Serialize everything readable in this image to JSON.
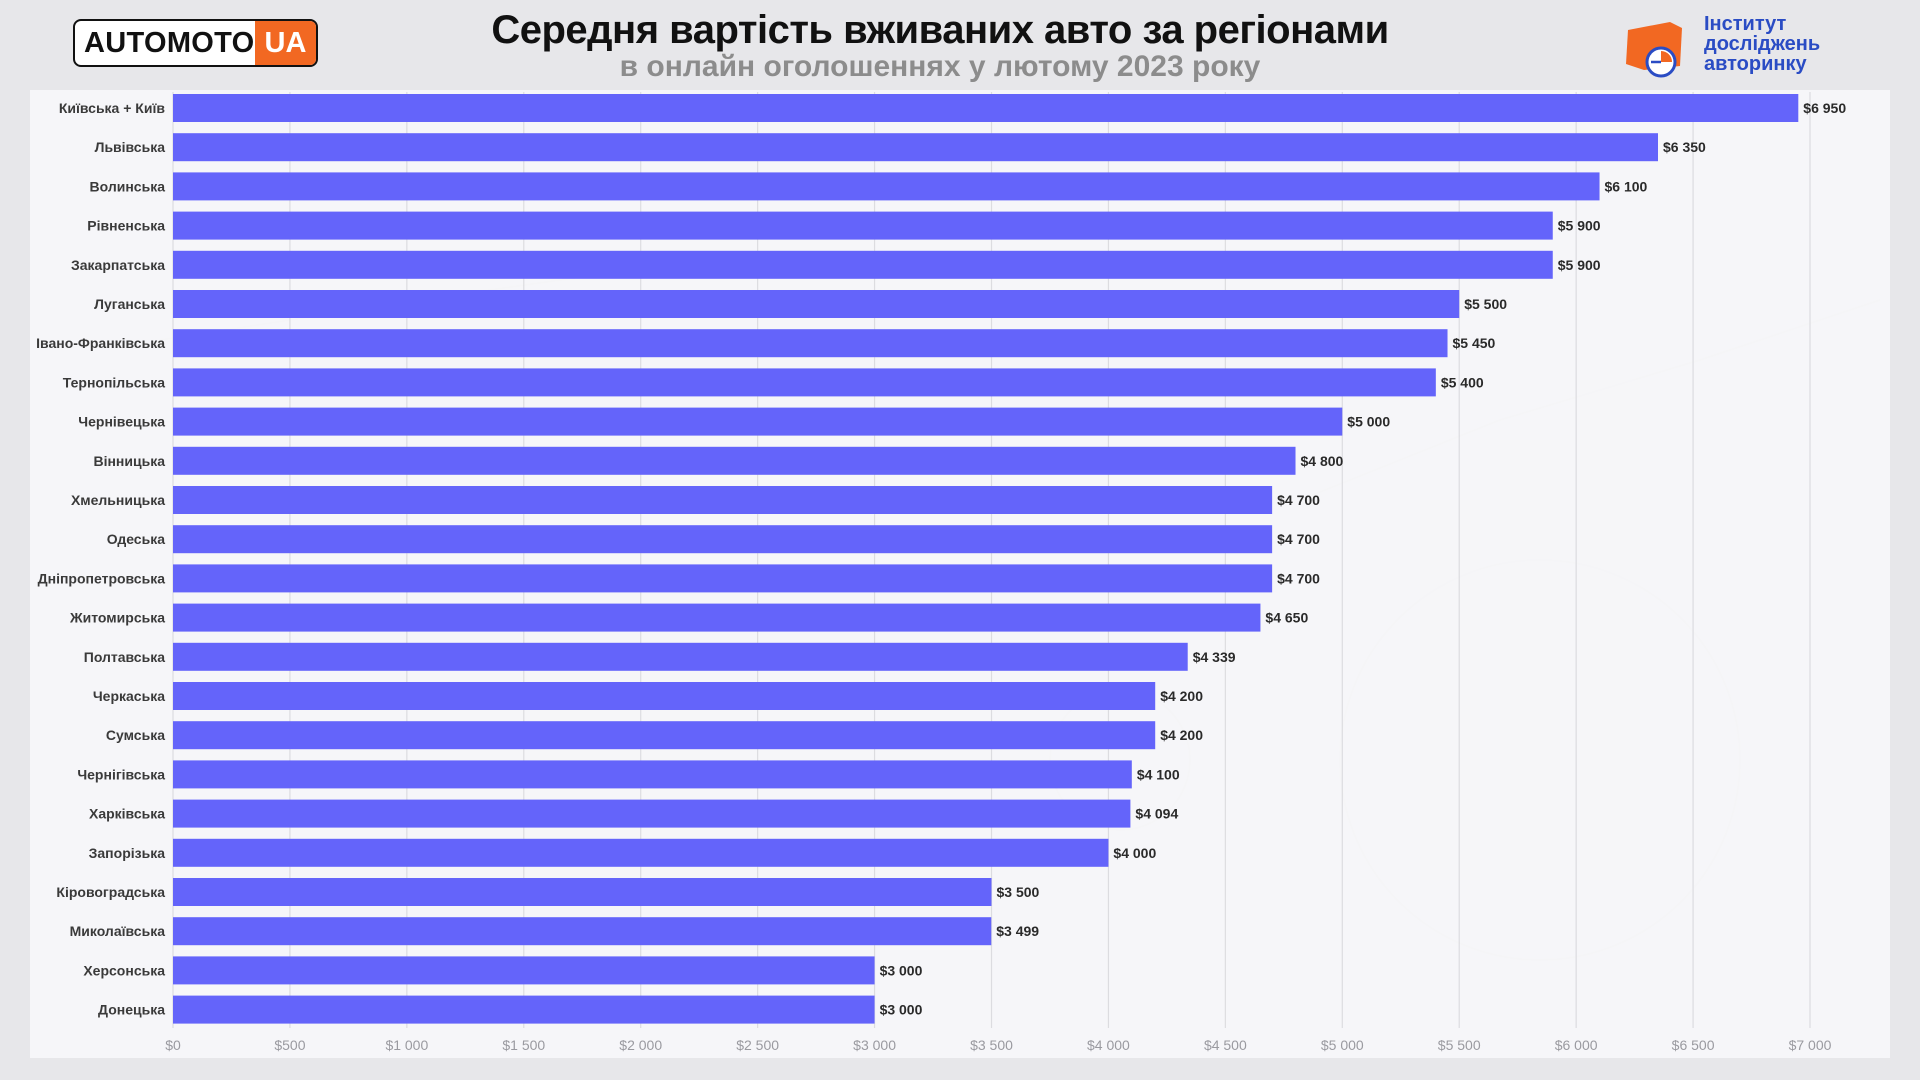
{
  "header": {
    "logo_left_text": "AUTOMOTO",
    "logo_left_accent": "UA",
    "logo_right_lines": [
      "Інститут",
      "досліджень",
      "авторинку"
    ]
  },
  "colors": {
    "bar": "#6464fa",
    "logo_orange": "#f26822",
    "logo_blue": "#2a4cc4",
    "background": "#e7e7ea"
  },
  "chart_data": {
    "type": "bar",
    "orientation": "horizontal",
    "title": "Середня вартість вживаних авто за регіонами",
    "subtitle": "в онлайн оголошеннях у лютому 2023 року",
    "categories": [
      "Київська + Київ",
      "Львівська",
      "Волинська",
      "Рівненська",
      "Закарпатська",
      "Луганська",
      "Івано-Франківська",
      "Тернопільська",
      "Чернівецька",
      "Вінницька",
      "Хмельницька",
      "Одеська",
      "Дніпропетровська",
      "Житомирська",
      "Полтавська",
      "Черкаська",
      "Сумська",
      "Чернігівська",
      "Харківська",
      "Запорізька",
      "Кіровоградська",
      "Миколаївська",
      "Херсонська",
      "Донецька"
    ],
    "values": [
      6950,
      6350,
      6100,
      5900,
      5900,
      5500,
      5450,
      5400,
      5000,
      4800,
      4700,
      4700,
      4700,
      4650,
      4339,
      4200,
      4200,
      4100,
      4094,
      4000,
      3500,
      3499,
      3000,
      3000
    ],
    "value_labels": [
      "$6 950",
      "$6 350",
      "$6 100",
      "$5 900",
      "$5 900",
      "$5 500",
      "$5 450",
      "$5 400",
      "$5 000",
      "$4 800",
      "$4 700",
      "$4 700",
      "$4 700",
      "$4 650",
      "$4 339",
      "$4 200",
      "$4 200",
      "$4 100",
      "$4 094",
      "$4 000",
      "$3 500",
      "$3 499",
      "$3 000",
      "$3 000"
    ],
    "x_ticks": [
      0,
      500,
      1000,
      1500,
      2000,
      2500,
      3000,
      3500,
      4000,
      4500,
      5000,
      5500,
      6000,
      6500,
      7000
    ],
    "x_tick_labels": [
      "$0",
      "$500",
      "$1 000",
      "$1 500",
      "$2 000",
      "$2 500",
      "$3 000",
      "$3 500",
      "$4 000",
      "$4 500",
      "$5 000",
      "$5 500",
      "$6 000",
      "$6 500",
      "$7 000"
    ],
    "xlim": [
      0,
      7000
    ],
    "xlabel": "",
    "ylabel": "",
    "grid": true,
    "legend": "none"
  }
}
